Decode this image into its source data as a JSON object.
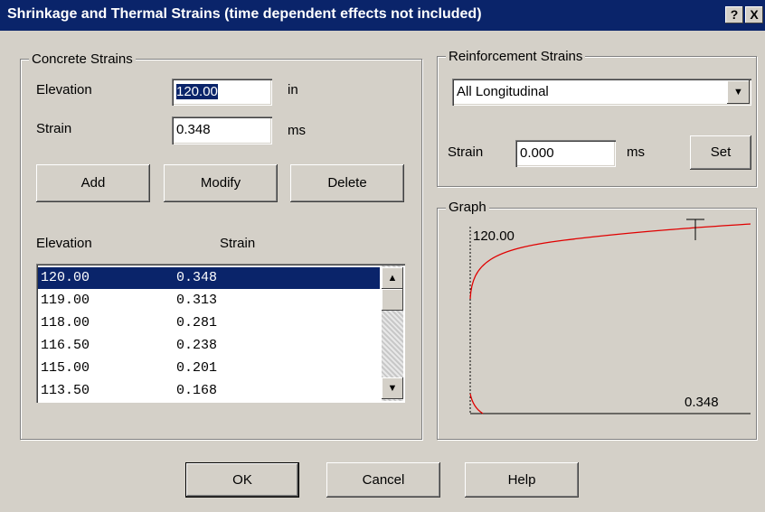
{
  "title": "Shrinkage and Thermal Strains (time dependent effects not included)",
  "title_buttons": [
    "?",
    "X"
  ],
  "concrete_strains": {
    "label": "Concrete Strains",
    "elevation_label": "Elevation",
    "elevation_value": "120.00",
    "elevation_unit": "in",
    "strain_label": "Strain",
    "strain_value": "0.348",
    "strain_unit": "ms",
    "buttons": [
      "Add",
      "Modify",
      "Delete"
    ],
    "list_headers": [
      "Elevation",
      "Strain"
    ],
    "rows": [
      [
        "120.00",
        "0.348"
      ],
      [
        "119.00",
        "0.313"
      ],
      [
        "118.00",
        "0.281"
      ],
      [
        "116.50",
        "0.238"
      ],
      [
        "115.00",
        "0.201"
      ],
      [
        "113.50",
        "0.168"
      ]
    ]
  },
  "reinforcement_strains": {
    "label": "Reinforcement Strains",
    "selection": "All Longitudinal",
    "strain_label": "Strain",
    "strain_value": "0.000",
    "strain_unit": "ms",
    "set_button": "Set"
  },
  "graph": {
    "label": "Graph",
    "top_label": "120.00",
    "right_label": "0.348"
  },
  "buttons": [
    "OK",
    "Cancel",
    "Help"
  ]
}
